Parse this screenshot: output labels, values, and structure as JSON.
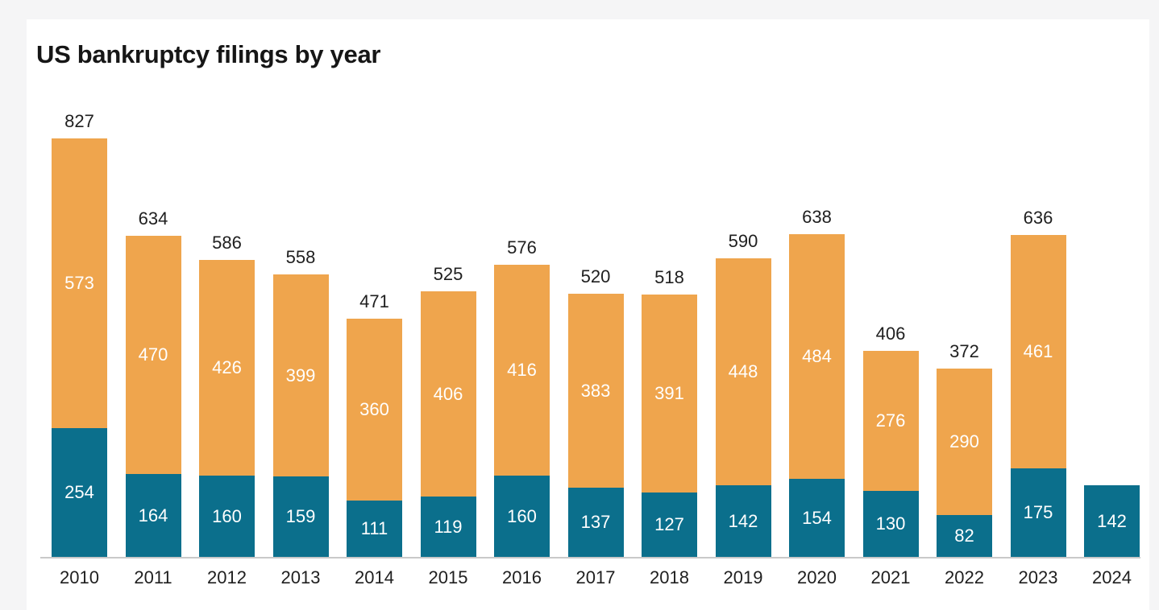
{
  "title": "US bankruptcy filings by year",
  "colors": {
    "background": "#ffffff",
    "page_background": "#f5f5f6",
    "teal_segment": "#0b6f8c",
    "orange_segment": "#efa54d",
    "axis_line": "#c9c9c9",
    "dark_text": "#1f1f1f",
    "segment_label_text": "#ffffff"
  },
  "chart_data": {
    "type": "bar",
    "stacked": true,
    "title": "US bankruptcy filings by year",
    "categories": [
      "2010",
      "2011",
      "2012",
      "2013",
      "2014",
      "2015",
      "2016",
      "2017",
      "2018",
      "2019",
      "2020",
      "2021",
      "2022",
      "2023",
      "2024"
    ],
    "series": [
      {
        "name": "teal-bottom-segment",
        "color": "#0b6f8c",
        "values": [
          254,
          164,
          160,
          159,
          111,
          119,
          160,
          137,
          127,
          142,
          154,
          130,
          82,
          175,
          142
        ]
      },
      {
        "name": "orange-top-segment",
        "color": "#efa54d",
        "values": [
          573,
          470,
          426,
          399,
          360,
          406,
          416,
          383,
          391,
          448,
          484,
          276,
          290,
          461,
          0
        ]
      }
    ],
    "totals": [
      827,
      634,
      586,
      558,
      471,
      525,
      576,
      520,
      518,
      590,
      638,
      406,
      372,
      636,
      null
    ],
    "xlabel": "",
    "ylabel": "",
    "ylim": [
      0,
      827
    ],
    "grid": false,
    "legend": "none",
    "value_labels": "white, centered inside each segment",
    "total_labels": "dark, above each bar (absent for 2024)",
    "x_axis_line": true
  }
}
